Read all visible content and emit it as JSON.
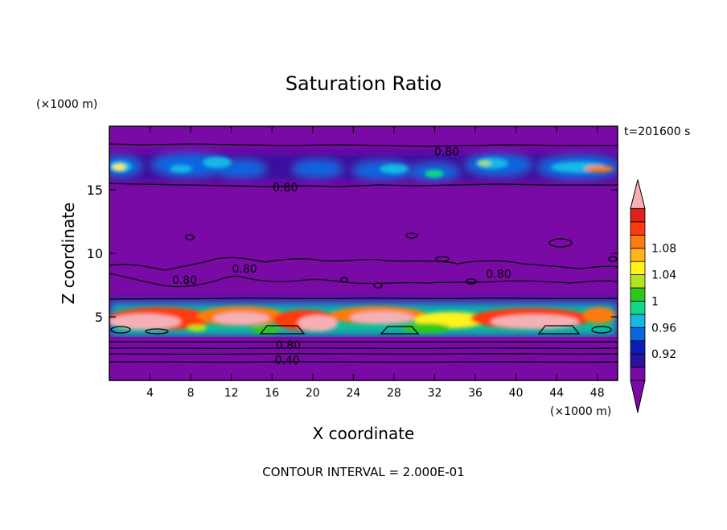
{
  "chart_data": {
    "type": "heatmap",
    "title": "Saturation Ratio",
    "xlabel": "X coordinate",
    "ylabel": "Z coordinate",
    "x_unit": "(×1000 m)",
    "y_unit": "(×1000 m)",
    "time_label": "t=201600 s",
    "footer": "CONTOUR INTERVAL = 2.000E-01",
    "xlim": [
      0,
      50
    ],
    "ylim": [
      0,
      20
    ],
    "x_ticks": [
      4,
      8,
      12,
      16,
      20,
      24,
      28,
      32,
      36,
      40,
      44,
      48
    ],
    "y_ticks": [
      5,
      10,
      15
    ],
    "colorbar": {
      "labels": [
        "0.92",
        "0.96",
        "1",
        "1.04",
        "1.08"
      ],
      "colors": [
        "#7a0aa5",
        "#2e10a0",
        "#0b1db8",
        "#0a66e0",
        "#12b8e6",
        "#10d88a",
        "#2ec81a",
        "#b4e51c",
        "#fff31a",
        "#ffb41a",
        "#ff7a10",
        "#ff3a10",
        "#e0201a",
        "#f4b0b4"
      ]
    },
    "contour_labels": [
      {
        "text": "0.80",
        "x": 33.2,
        "z": 18.0
      },
      {
        "text": "0.80",
        "x": 17.3,
        "z": 15.2
      },
      {
        "text": "0.80",
        "x": 13.3,
        "z": 8.8
      },
      {
        "text": "0.80",
        "x": 7.4,
        "z": 7.9
      },
      {
        "text": "0.80",
        "x": 38.3,
        "z": 8.4
      },
      {
        "text": "0.80",
        "x": 17.6,
        "z": 2.8
      },
      {
        "text": "0.40",
        "x": 17.5,
        "z": 1.6
      }
    ]
  }
}
